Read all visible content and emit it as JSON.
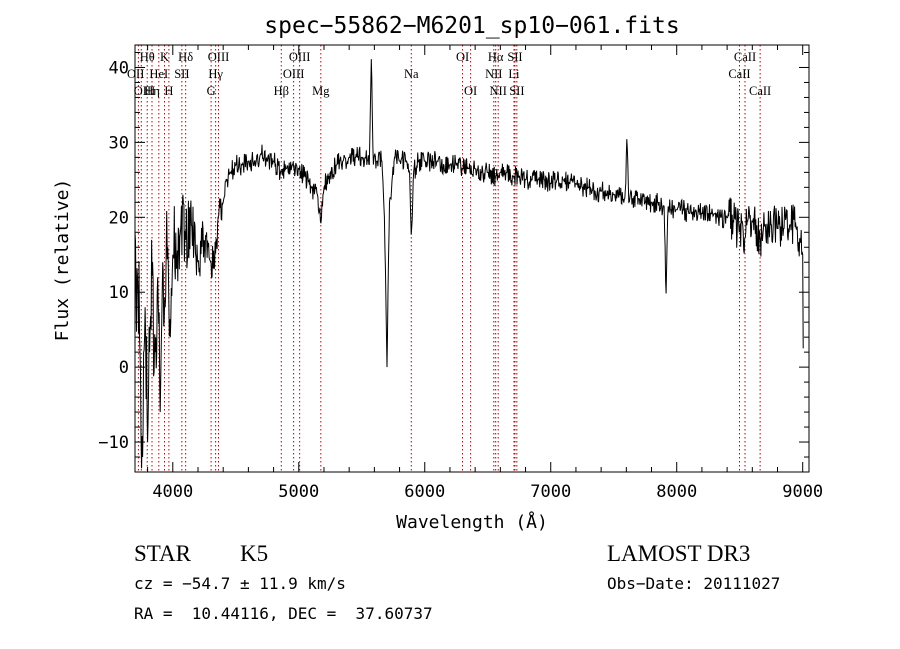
{
  "chart_data": {
    "type": "line",
    "title": "spec−55862−M6201_sp10−061.fits",
    "xlabel": "Wavelength (Å)",
    "ylabel": "Flux (relative)",
    "xlim": [
      3700,
      9050
    ],
    "ylim": [
      -14,
      43
    ],
    "xticks": [
      4000,
      5000,
      6000,
      7000,
      8000,
      9000
    ],
    "yticks": [
      -10,
      0,
      10,
      20,
      30,
      40
    ],
    "ytick_labels": [
      "−10",
      "0",
      "10",
      "20",
      "30",
      "40"
    ],
    "series": [
      {
        "name": "flux",
        "anchors": [
          [
            3700,
            18
          ],
          [
            3720,
            12
          ],
          [
            3740,
            2
          ],
          [
            3760,
            -12
          ],
          [
            3780,
            8
          ],
          [
            3800,
            -10
          ],
          [
            3820,
            5
          ],
          [
            3840,
            14
          ],
          [
            3860,
            2
          ],
          [
            3880,
            12
          ],
          [
            3900,
            -6
          ],
          [
            3920,
            14
          ],
          [
            3940,
            8
          ],
          [
            3960,
            16
          ],
          [
            3980,
            4
          ],
          [
            4000,
            15
          ],
          [
            4030,
            13
          ],
          [
            4060,
            18
          ],
          [
            4080,
            23
          ],
          [
            4100,
            17
          ],
          [
            4150,
            19
          ],
          [
            4200,
            14
          ],
          [
            4250,
            17
          ],
          [
            4300,
            14
          ],
          [
            4330,
            13
          ],
          [
            4360,
            20
          ],
          [
            4400,
            22
          ],
          [
            4430,
            25
          ],
          [
            4460,
            26
          ],
          [
            4500,
            27
          ],
          [
            4550,
            27
          ],
          [
            4600,
            27.5
          ],
          [
            4650,
            27.5
          ],
          [
            4700,
            28.5
          ],
          [
            4750,
            27.5
          ],
          [
            4800,
            27.5
          ],
          [
            4861,
            26
          ],
          [
            4900,
            26.5
          ],
          [
            4950,
            27
          ],
          [
            5000,
            26.5
          ],
          [
            5050,
            25.5
          ],
          [
            5100,
            24
          ],
          [
            5150,
            23
          ],
          [
            5175,
            19
          ],
          [
            5200,
            24
          ],
          [
            5250,
            26
          ],
          [
            5300,
            27
          ],
          [
            5350,
            27.5
          ],
          [
            5400,
            28
          ],
          [
            5450,
            28
          ],
          [
            5500,
            28
          ],
          [
            5530,
            28
          ],
          [
            5560,
            27
          ],
          [
            5577,
            42
          ],
          [
            5590,
            27
          ],
          [
            5620,
            27.5
          ],
          [
            5660,
            27.5
          ],
          [
            5680,
            20
          ],
          [
            5700,
            0
          ],
          [
            5720,
            22
          ],
          [
            5760,
            28
          ],
          [
            5800,
            27.5
          ],
          [
            5850,
            27.5
          ],
          [
            5880,
            26
          ],
          [
            5893,
            17
          ],
          [
            5910,
            26
          ],
          [
            5950,
            27.5
          ],
          [
            6000,
            27.5
          ],
          [
            6050,
            27.5
          ],
          [
            6100,
            27.5
          ],
          [
            6150,
            27
          ],
          [
            6200,
            27
          ],
          [
            6250,
            27
          ],
          [
            6300,
            26.5
          ],
          [
            6350,
            26.5
          ],
          [
            6400,
            26.5
          ],
          [
            6450,
            26
          ],
          [
            6500,
            26
          ],
          [
            6563,
            25.5
          ],
          [
            6600,
            26
          ],
          [
            6650,
            26
          ],
          [
            6700,
            25.5
          ],
          [
            6750,
            25.5
          ],
          [
            6800,
            25
          ],
          [
            6850,
            25
          ],
          [
            6900,
            25
          ],
          [
            6950,
            25
          ],
          [
            7000,
            24.5
          ],
          [
            7050,
            25
          ],
          [
            7100,
            25
          ],
          [
            7150,
            24.5
          ],
          [
            7200,
            24.5
          ],
          [
            7250,
            24
          ],
          [
            7300,
            24
          ],
          [
            7350,
            23.5
          ],
          [
            7400,
            23.5
          ],
          [
            7450,
            23.5
          ],
          [
            7500,
            23
          ],
          [
            7550,
            23
          ],
          [
            7590,
            22.5
          ],
          [
            7605,
            31
          ],
          [
            7620,
            22
          ],
          [
            7650,
            22.5
          ],
          [
            7700,
            22.5
          ],
          [
            7750,
            22
          ],
          [
            7800,
            22
          ],
          [
            7850,
            22
          ],
          [
            7900,
            21.5
          ],
          [
            7915,
            9
          ],
          [
            7930,
            21.5
          ],
          [
            7950,
            21
          ],
          [
            8000,
            21
          ],
          [
            8050,
            21
          ],
          [
            8100,
            20.5
          ],
          [
            8150,
            21
          ],
          [
            8200,
            20.5
          ],
          [
            8250,
            20.5
          ],
          [
            8300,
            20.5
          ],
          [
            8350,
            20
          ],
          [
            8400,
            20
          ],
          [
            8450,
            19.5
          ],
          [
            8498,
            18
          ],
          [
            8520,
            19.5
          ],
          [
            8542,
            17
          ],
          [
            8560,
            19.5
          ],
          [
            8600,
            19.5
          ],
          [
            8662,
            17
          ],
          [
            8700,
            19
          ],
          [
            8750,
            19
          ],
          [
            8800,
            18.5
          ],
          [
            8850,
            18.5
          ],
          [
            8900,
            19
          ],
          [
            8950,
            18.5
          ],
          [
            8980,
            17
          ],
          [
            9000,
            15
          ],
          [
            9003,
            5
          ],
          [
            9005,
            0
          ]
        ],
        "noise": {
          "base": 1.4,
          "blue": [
            {
              "from": 3700,
              "to": 4100,
              "amp": 14
            },
            {
              "from": 4100,
              "to": 4400,
              "amp": 5
            }
          ],
          "red": [
            {
              "from": 8400,
              "to": 9005,
              "amp": 3
            }
          ],
          "step": 4
        }
      }
    ],
    "line_markers": [
      {
        "wavelength": 3727,
        "label": "OII",
        "row": 1,
        "anchor": "end",
        "dx": 6
      },
      {
        "wavelength": 3750,
        "label": "OIII",
        "row": 2,
        "anchor": "end",
        "dx": 14
      },
      {
        "wavelength": 3797,
        "label": "Hθ",
        "row": 0
      },
      {
        "wavelength": 3835,
        "label": "Hη",
        "row": 2
      },
      {
        "wavelength": 3889,
        "label": "HeI",
        "row": 1
      },
      {
        "wavelength": 3934,
        "label": "K",
        "row": 0
      },
      {
        "wavelength": 3969,
        "label": "H",
        "row": 2
      },
      {
        "wavelength": 4072,
        "label": "SII",
        "row": 1
      },
      {
        "wavelength": 4102,
        "label": "Hδ",
        "row": 0
      },
      {
        "wavelength": 4304,
        "label": "G",
        "row": 2
      },
      {
        "wavelength": 4340,
        "label": "Hγ",
        "row": 1
      },
      {
        "wavelength": 4363,
        "label": "OIII",
        "row": 0
      },
      {
        "wavelength": 4861,
        "label": "Hβ",
        "row": 2
      },
      {
        "wavelength": 4959,
        "label": "OIII",
        "row": 1
      },
      {
        "wavelength": 5007,
        "label": "OIII",
        "row": 0
      },
      {
        "wavelength": 5175,
        "label": "Mg",
        "row": 2
      },
      {
        "wavelength": 5893,
        "label": "Na",
        "row": 1
      },
      {
        "wavelength": 6300,
        "label": "OI",
        "row": 0
      },
      {
        "wavelength": 6364,
        "label": "OI",
        "row": 2
      },
      {
        "wavelength": 6548,
        "label": "NII",
        "row": 1
      },
      {
        "wavelength": 6563,
        "label": "Hα",
        "row": 0
      },
      {
        "wavelength": 6583,
        "label": "NII",
        "row": 2
      },
      {
        "wavelength": 6708,
        "label": "Li",
        "row": 1
      },
      {
        "wavelength": 6716,
        "label": "SII",
        "row": 0
      },
      {
        "wavelength": 6731,
        "label": "SII",
        "row": 2
      },
      {
        "wavelength": 8498,
        "label": "CaII",
        "row": 1
      },
      {
        "wavelength": 8542,
        "label": "CaII",
        "row": 0
      },
      {
        "wavelength": 8662,
        "label": "CaII",
        "row": 2
      }
    ]
  },
  "info": {
    "object_class": "STAR",
    "subclass": "K5",
    "survey": "LAMOST DR3",
    "redshift": "cz = −54.7 ± 11.9 km/s",
    "obs_date": "Obs−Date: 20111027",
    "coordinates": "RA =  10.44116, DEC =  37.60737"
  },
  "colors": {
    "axis": "#000000",
    "spectrum": "#000000",
    "marker": "#c00000",
    "background": "#ffffff"
  }
}
